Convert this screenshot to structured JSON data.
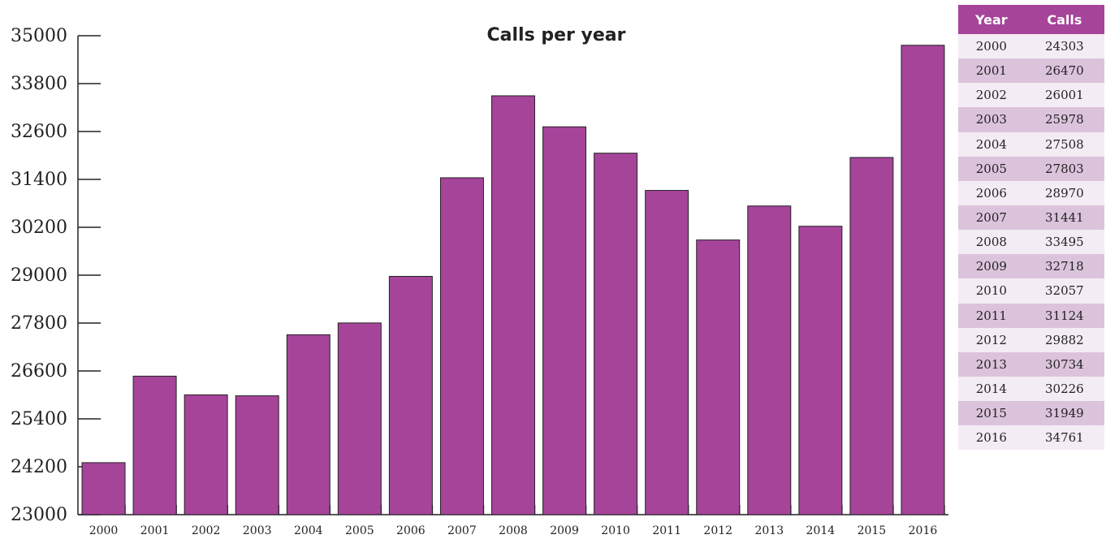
{
  "colors": {
    "bar": "#a6449a",
    "table_header_bg": "#a6449a",
    "table_row_light": "#f4ecf4",
    "table_row_dark": "#dcc3dc"
  },
  "chart_data": {
    "type": "bar",
    "title": "Calls per year",
    "xlabel": "",
    "ylabel": "",
    "categories": [
      "2000",
      "2001",
      "2002",
      "2003",
      "2004",
      "2005",
      "2006",
      "2007",
      "2008",
      "2009",
      "2010",
      "2011",
      "2012",
      "2013",
      "2014",
      "2015",
      "2016"
    ],
    "values": [
      24303,
      26470,
      26001,
      25978,
      27508,
      27803,
      28970,
      31441,
      33495,
      32718,
      32057,
      31124,
      29882,
      30734,
      30226,
      31949,
      34761
    ],
    "ylim": [
      23000,
      35000
    ],
    "yticks": [
      23000,
      24200,
      25400,
      26600,
      27800,
      29000,
      30200,
      31400,
      32600,
      33800,
      35000
    ],
    "grid": false,
    "legend": "none"
  },
  "table": {
    "headers": [
      "Year",
      "Calls"
    ],
    "rows": [
      [
        "2000",
        "24303"
      ],
      [
        "2001",
        "26470"
      ],
      [
        "2002",
        "26001"
      ],
      [
        "2003",
        "25978"
      ],
      [
        "2004",
        "27508"
      ],
      [
        "2005",
        "27803"
      ],
      [
        "2006",
        "28970"
      ],
      [
        "2007",
        "31441"
      ],
      [
        "2008",
        "33495"
      ],
      [
        "2009",
        "32718"
      ],
      [
        "2010",
        "32057"
      ],
      [
        "2011",
        "31124"
      ],
      [
        "2012",
        "29882"
      ],
      [
        "2013",
        "30734"
      ],
      [
        "2014",
        "30226"
      ],
      [
        "2015",
        "31949"
      ],
      [
        "2016",
        "34761"
      ]
    ]
  }
}
